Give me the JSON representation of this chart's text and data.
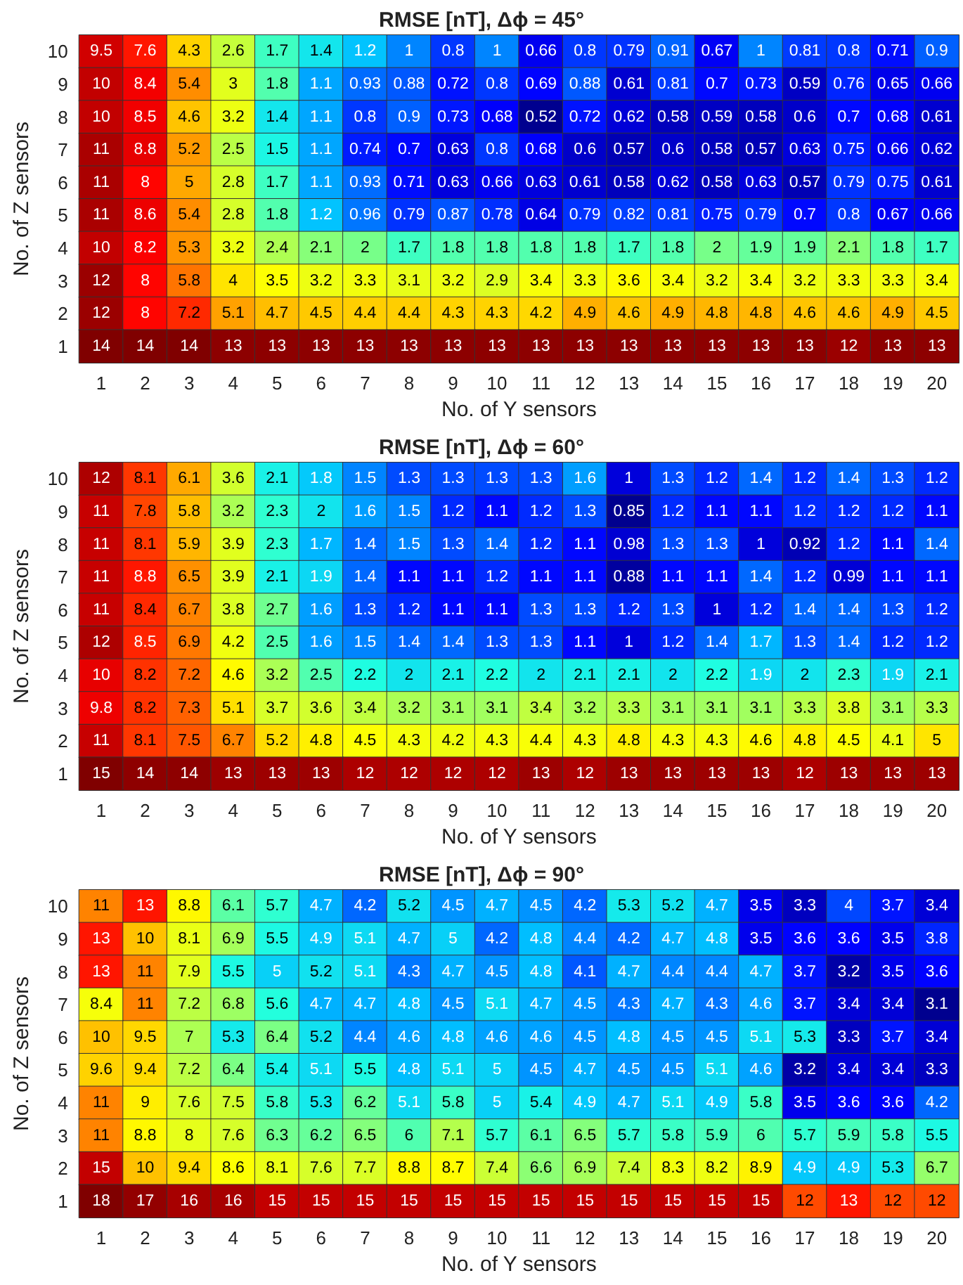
{
  "chart_data": [
    {
      "type": "heatmap",
      "title": "RMSE [nT], Δϕ = 45°",
      "xlabel": "No. of Y sensors",
      "ylabel": "No. of Z sensors",
      "data_labels": true,
      "categories": [
        "1",
        "2",
        "3",
        "4",
        "5",
        "6",
        "7",
        "8",
        "9",
        "10",
        "11",
        "12",
        "13",
        "14",
        "15",
        "16",
        "17",
        "18",
        "19",
        "20"
      ],
      "y_categories": [
        "10",
        "9",
        "8",
        "7",
        "6",
        "5",
        "4",
        "3",
        "2",
        "1"
      ],
      "cells": [
        [
          9.5,
          7.6,
          4.3,
          2.6,
          1.7,
          1.4,
          1.2,
          1,
          0.8,
          1,
          0.66,
          0.8,
          0.79,
          0.91,
          0.67,
          1,
          0.81,
          0.8,
          0.71,
          0.9
        ],
        [
          10,
          8.4,
          5.4,
          3,
          1.8,
          1.1,
          0.93,
          0.88,
          0.72,
          0.8,
          0.69,
          0.88,
          0.61,
          0.81,
          0.7,
          0.73,
          0.59,
          0.76,
          0.65,
          0.66
        ],
        [
          10,
          8.5,
          4.6,
          3.2,
          1.4,
          1.1,
          0.8,
          0.9,
          0.73,
          0.68,
          0.52,
          0.72,
          0.62,
          0.58,
          0.59,
          0.58,
          0.6,
          0.7,
          0.68,
          0.61
        ],
        [
          11,
          8.8,
          5.2,
          2.5,
          1.5,
          1.1,
          0.74,
          0.7,
          0.63,
          0.8,
          0.68,
          0.6,
          0.57,
          0.6,
          0.58,
          0.57,
          0.63,
          0.75,
          0.66,
          0.62
        ],
        [
          11,
          8,
          5,
          2.8,
          1.7,
          1.1,
          0.93,
          0.71,
          0.63,
          0.66,
          0.63,
          0.61,
          0.58,
          0.62,
          0.58,
          0.63,
          0.57,
          0.79,
          0.75,
          0.61
        ],
        [
          11,
          8.6,
          5.4,
          2.8,
          1.8,
          1.2,
          0.96,
          0.79,
          0.87,
          0.78,
          0.64,
          0.79,
          0.82,
          0.81,
          0.75,
          0.79,
          0.7,
          0.8,
          0.67,
          0.66
        ],
        [
          10,
          8.2,
          5.3,
          3.2,
          2.4,
          2.1,
          2,
          1.7,
          1.8,
          1.8,
          1.8,
          1.8,
          1.7,
          1.8,
          2,
          1.9,
          1.9,
          2.1,
          1.8,
          1.7
        ],
        [
          12,
          8,
          5.8,
          4,
          3.5,
          3.2,
          3.3,
          3.1,
          3.2,
          2.9,
          3.4,
          3.3,
          3.6,
          3.4,
          3.2,
          3.4,
          3.2,
          3.3,
          3.3,
          3.4
        ],
        [
          12,
          8,
          7.2,
          5.1,
          4.7,
          4.5,
          4.4,
          4.4,
          4.3,
          4.3,
          4.2,
          4.9,
          4.6,
          4.9,
          4.8,
          4.8,
          4.6,
          4.6,
          4.9,
          4.5
        ],
        [
          14,
          14,
          14,
          13,
          13,
          13,
          13,
          13,
          13,
          13,
          13,
          13,
          13,
          13,
          13,
          13,
          13,
          12,
          13,
          13
        ]
      ]
    },
    {
      "type": "heatmap",
      "title": "RMSE [nT], Δϕ = 60°",
      "xlabel": "No. of Y sensors",
      "ylabel": "No. of Z sensors",
      "data_labels": true,
      "categories": [
        "1",
        "2",
        "3",
        "4",
        "5",
        "6",
        "7",
        "8",
        "9",
        "10",
        "11",
        "12",
        "13",
        "14",
        "15",
        "16",
        "17",
        "18",
        "19",
        "20"
      ],
      "y_categories": [
        "10",
        "9",
        "8",
        "7",
        "6",
        "5",
        "4",
        "3",
        "2",
        "1"
      ],
      "cells": [
        [
          12,
          8.1,
          6.1,
          3.6,
          2.1,
          1.8,
          1.5,
          1.3,
          1.3,
          1.3,
          1.3,
          1.6,
          1,
          1.3,
          1.2,
          1.4,
          1.2,
          1.4,
          1.3,
          1.2
        ],
        [
          11,
          7.8,
          5.8,
          3.2,
          2.3,
          2,
          1.6,
          1.5,
          1.2,
          1.1,
          1.2,
          1.3,
          0.85,
          1.2,
          1.1,
          1.1,
          1.2,
          1.2,
          1.2,
          1.1
        ],
        [
          11,
          8.1,
          5.9,
          3.9,
          2.3,
          1.7,
          1.4,
          1.5,
          1.3,
          1.4,
          1.2,
          1.1,
          0.98,
          1.3,
          1.3,
          1,
          0.92,
          1.2,
          1.1,
          1.4
        ],
        [
          11,
          8.8,
          6.5,
          3.9,
          2.1,
          1.9,
          1.4,
          1.1,
          1.1,
          1.2,
          1.1,
          1.1,
          0.88,
          1.1,
          1.1,
          1.4,
          1.2,
          0.99,
          1.1,
          1.1
        ],
        [
          11,
          8.4,
          6.7,
          3.8,
          2.7,
          1.6,
          1.3,
          1.2,
          1.1,
          1.1,
          1.3,
          1.3,
          1.2,
          1.3,
          1,
          1.2,
          1.4,
          1.4,
          1.3,
          1.2
        ],
        [
          12,
          8.5,
          6.9,
          4.2,
          2.5,
          1.6,
          1.5,
          1.4,
          1.4,
          1.3,
          1.3,
          1.1,
          1,
          1.2,
          1.4,
          1.7,
          1.3,
          1.4,
          1.2,
          1.2
        ],
        [
          10,
          8.2,
          7.2,
          4.6,
          3.2,
          2.5,
          2.2,
          2,
          2.1,
          2.2,
          2,
          2.1,
          2.1,
          2,
          2.2,
          1.9,
          2,
          2.3,
          1.9,
          2.1
        ],
        [
          9.8,
          8.2,
          7.3,
          5.1,
          3.7,
          3.6,
          3.4,
          3.2,
          3.1,
          3.1,
          3.4,
          3.2,
          3.3,
          3.1,
          3.1,
          3.1,
          3.3,
          3.8,
          3.1,
          3.3
        ],
        [
          11,
          8.1,
          7.5,
          6.7,
          5.2,
          4.8,
          4.5,
          4.3,
          4.2,
          4.3,
          4.4,
          4.3,
          4.8,
          4.3,
          4.3,
          4.6,
          4.8,
          4.5,
          4.1,
          5
        ],
        [
          15,
          14,
          14,
          13,
          13,
          13,
          12,
          12,
          12,
          12,
          13,
          12,
          13,
          13,
          13,
          13,
          12,
          13,
          13,
          13
        ]
      ]
    },
    {
      "type": "heatmap",
      "title": "RMSE [nT], Δϕ = 90°",
      "xlabel": "No. of Y sensors",
      "ylabel": "No. of Z sensors",
      "data_labels": true,
      "categories": [
        "1",
        "2",
        "3",
        "4",
        "5",
        "6",
        "7",
        "8",
        "9",
        "10",
        "11",
        "12",
        "13",
        "14",
        "15",
        "16",
        "17",
        "18",
        "19",
        "20"
      ],
      "y_categories": [
        "10",
        "9",
        "8",
        "7",
        "6",
        "5",
        "4",
        "3",
        "2",
        "1"
      ],
      "cells": [
        [
          11,
          13,
          8.8,
          6.1,
          5.7,
          4.7,
          4.2,
          5.2,
          4.5,
          4.7,
          4.5,
          4.2,
          5.3,
          5.2,
          4.7,
          3.5,
          3.3,
          4,
          3.7,
          3.4
        ],
        [
          13,
          10,
          8.1,
          6.9,
          5.5,
          4.9,
          5.1,
          4.7,
          5,
          4.2,
          4.8,
          4.4,
          4.2,
          4.7,
          4.8,
          3.5,
          3.6,
          3.6,
          3.5,
          3.8
        ],
        [
          13,
          11,
          7.9,
          5.5,
          5,
          5.2,
          5.1,
          4.3,
          4.7,
          4.5,
          4.8,
          4.1,
          4.7,
          4.4,
          4.4,
          4.7,
          3.7,
          3.2,
          3.5,
          3.6
        ],
        [
          8.4,
          11,
          7.2,
          6.8,
          5.6,
          4.7,
          4.7,
          4.8,
          4.5,
          5.1,
          4.7,
          4.5,
          4.3,
          4.7,
          4.3,
          4.6,
          3.7,
          3.4,
          3.4,
          3.1
        ],
        [
          10,
          9.5,
          7,
          5.3,
          6.4,
          5.2,
          4.4,
          4.6,
          4.8,
          4.6,
          4.6,
          4.5,
          4.8,
          4.5,
          4.5,
          5.1,
          5.3,
          3.3,
          3.7,
          3.4
        ],
        [
          9.6,
          9.4,
          7.2,
          6.4,
          5.4,
          5.1,
          5.5,
          4.8,
          5.1,
          5,
          4.5,
          4.7,
          4.5,
          4.5,
          5.1,
          4.6,
          3.2,
          3.4,
          3.4,
          3.3
        ],
        [
          11,
          9,
          7.6,
          7.5,
          5.8,
          5.3,
          6.2,
          5.1,
          5.8,
          5,
          5.4,
          4.9,
          4.7,
          5.1,
          4.9,
          5.8,
          3.5,
          3.6,
          3.6,
          4.2
        ],
        [
          11,
          8.8,
          8,
          7.6,
          6.3,
          6.2,
          6.5,
          6,
          7.1,
          5.7,
          6.1,
          6.5,
          5.7,
          5.8,
          5.9,
          6,
          5.7,
          5.9,
          5.8,
          5.5
        ],
        [
          15,
          10,
          9.4,
          8.6,
          8.1,
          7.6,
          7.7,
          8.8,
          8.7,
          7.4,
          6.6,
          6.9,
          7.4,
          8.3,
          8.2,
          8.9,
          4.9,
          4.9,
          5.3,
          6.7
        ],
        [
          18,
          17,
          16,
          16,
          15,
          15,
          15,
          15,
          15,
          15,
          15,
          15,
          15,
          15,
          15,
          15,
          12,
          13,
          12,
          12
        ]
      ]
    }
  ]
}
